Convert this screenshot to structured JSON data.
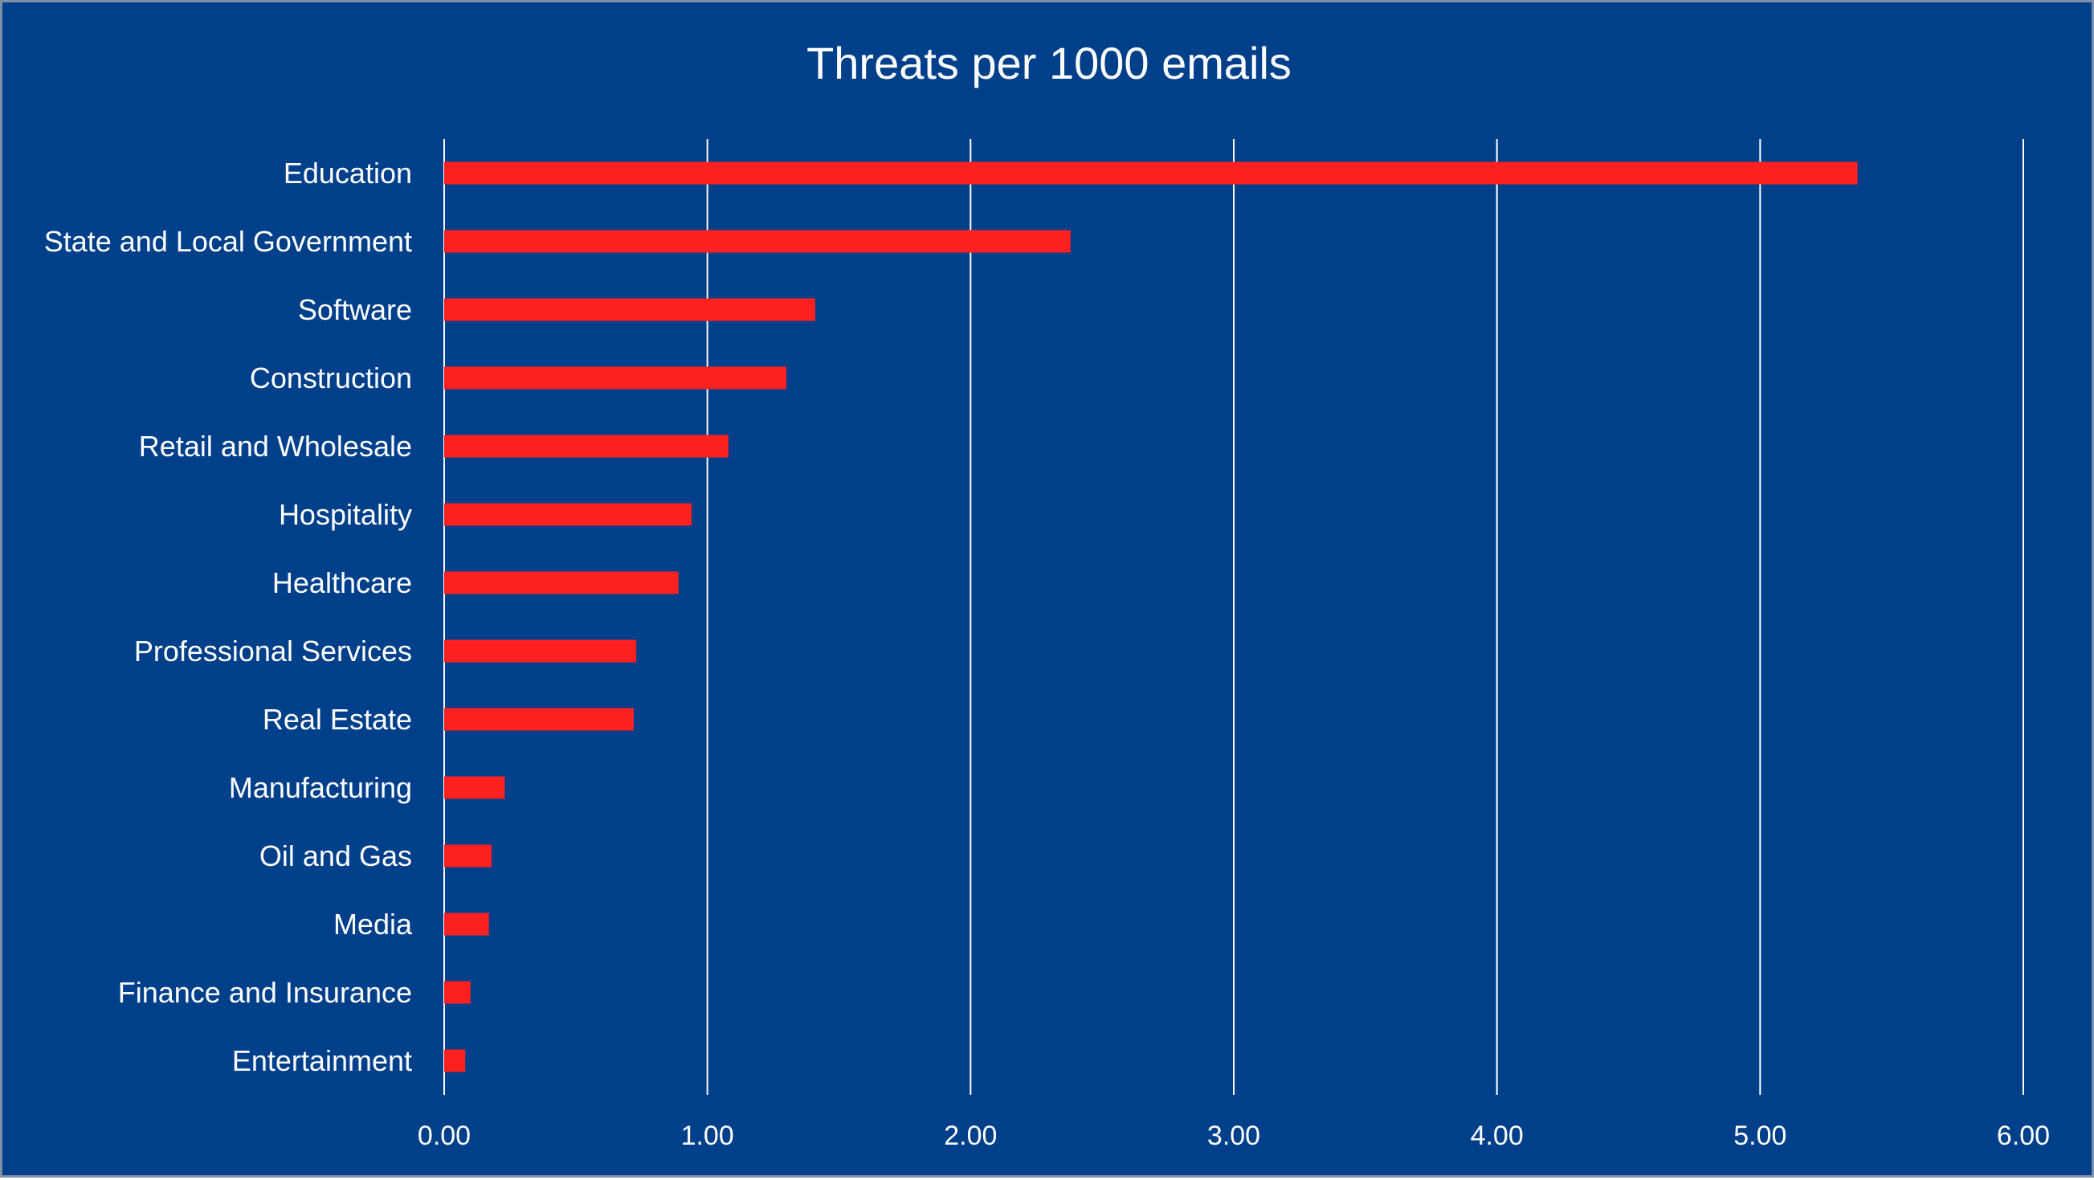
{
  "chart_data": {
    "type": "bar",
    "orientation": "horizontal",
    "title": "Threats per 1000 emails",
    "xlabel": "",
    "ylabel": "",
    "categories": [
      "Education",
      "State and Local Government",
      "Software",
      "Construction",
      "Retail and Wholesale",
      "Hospitality",
      "Healthcare",
      "Professional Services",
      "Real Estate",
      "Manufacturing",
      "Oil and Gas",
      "Media",
      "Finance and Insurance",
      "Entertainment"
    ],
    "values": [
      5.37,
      2.38,
      1.41,
      1.3,
      1.08,
      0.94,
      0.89,
      0.73,
      0.72,
      0.23,
      0.18,
      0.17,
      0.1,
      0.08
    ],
    "xlim": [
      0,
      6
    ],
    "xticks": [
      "0.00",
      "1.00",
      "2.00",
      "3.00",
      "4.00",
      "5.00",
      "6.00"
    ],
    "grid": true,
    "legend": "none",
    "colors": {
      "background": "#003f8a",
      "bar": "#ff2020",
      "text": "#ffffff",
      "gridline": "#ffffff"
    }
  }
}
